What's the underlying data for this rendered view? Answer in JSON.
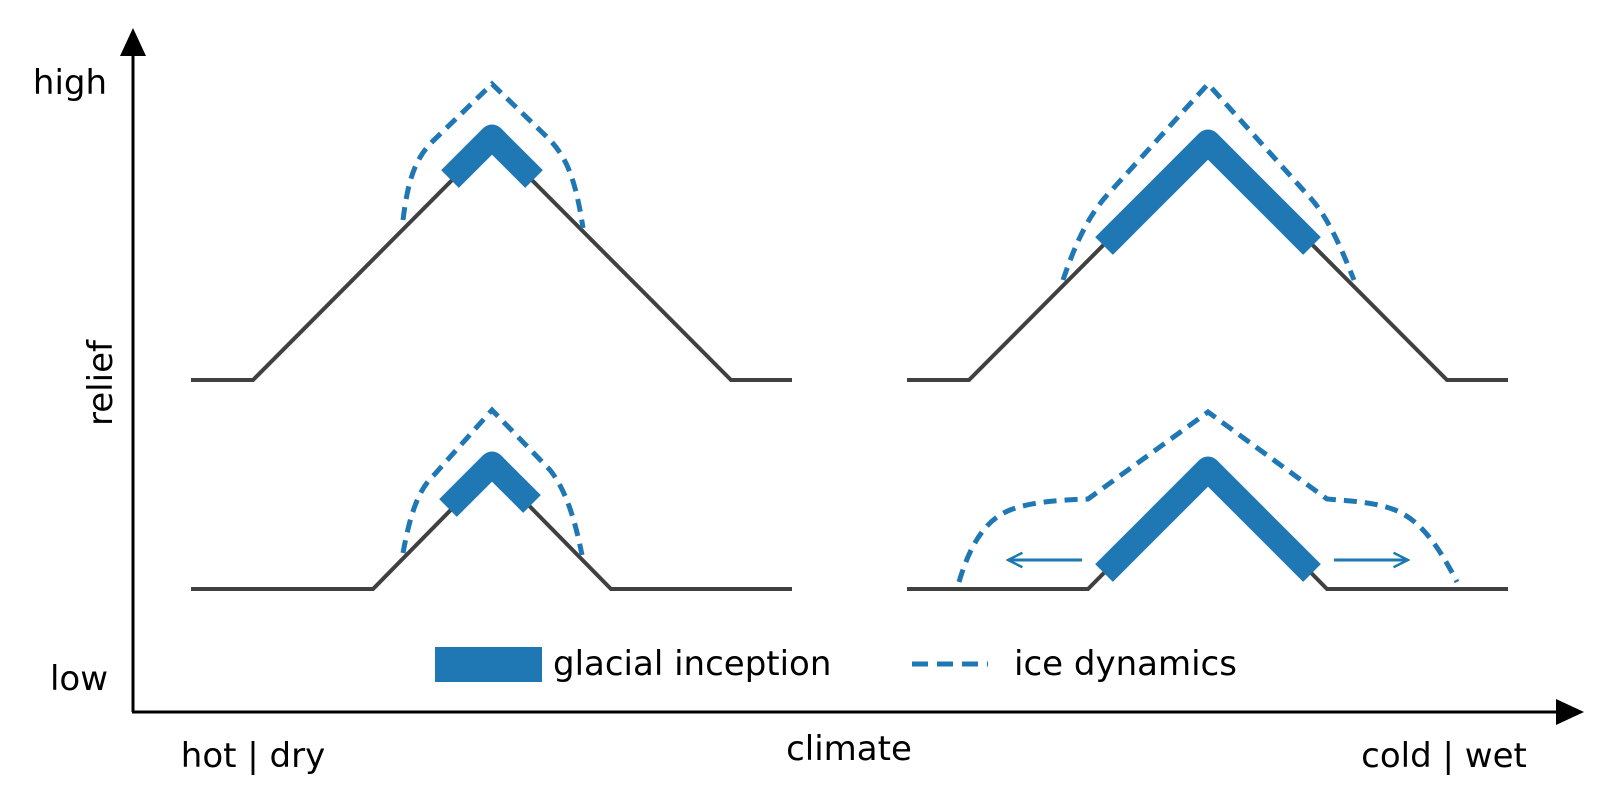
{
  "axes": {
    "y_top_label": "high",
    "y_bottom_label": "low",
    "y_title": "relief",
    "x_left_label": "hot | dry",
    "x_center_label": "climate",
    "x_right_label": "cold | wet"
  },
  "legend": {
    "glacial_inception": "glacial inception",
    "ice_dynamics": "ice dynamics"
  },
  "colors": {
    "glacier": "#1f77b4",
    "ice_dynamics": "#1f77b4",
    "terrain": "#404040",
    "axis": "#000000"
  },
  "panels": [
    {
      "relief": "high",
      "climate": "hot | dry"
    },
    {
      "relief": "high",
      "climate": "cold | wet"
    },
    {
      "relief": "low",
      "climate": "hot | dry"
    },
    {
      "relief": "low",
      "climate": "cold | wet"
    }
  ]
}
